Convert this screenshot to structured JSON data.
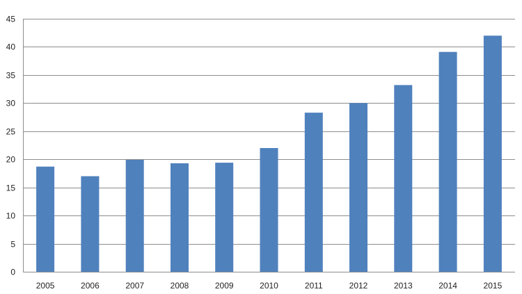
{
  "chart_data": {
    "type": "bar",
    "title": "",
    "xlabel": "",
    "ylabel": "",
    "categories": [
      "2005",
      "2006",
      "2007",
      "2008",
      "2009",
      "2010",
      "2011",
      "2012",
      "2013",
      "2014",
      "2015"
    ],
    "values": [
      18.7,
      17.0,
      19.9,
      19.3,
      19.4,
      22.0,
      28.3,
      30.0,
      33.2,
      39.1,
      42.0
    ],
    "ylim": [
      0,
      45
    ],
    "yticks": [
      "0",
      "5",
      "10",
      "15",
      "20",
      "25",
      "30",
      "35",
      "40",
      "45"
    ],
    "grid": true,
    "legend": "none",
    "colors": {
      "bar": "#4f81bd",
      "grid": "#8c8c8c",
      "axis": "#8c8c8c",
      "text": "#222222"
    }
  }
}
